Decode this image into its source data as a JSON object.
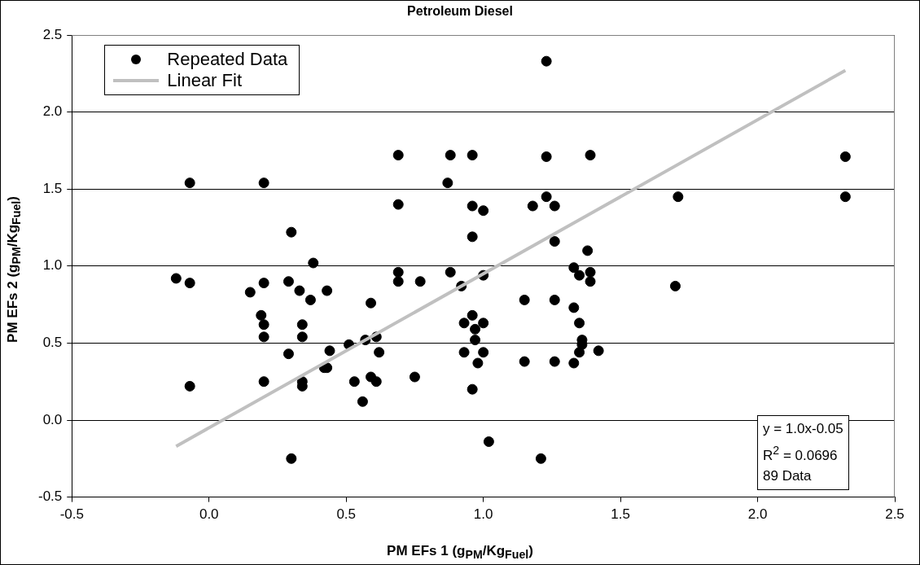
{
  "chart_data": {
    "type": "scatter",
    "title": "Petroleum Diesel",
    "xlabel": "PM EFs 1 (g$_{PM}$/Kg$_{Fuel}$)",
    "ylabel": "PM EFs 2 (g$_{PM}$/Kg$_{Fuel}$)",
    "annotations": [
      "y = 1.0x-0.05",
      "R$^{2}$ = 0.0696",
      "89 Data"
    ],
    "series": [
      {
        "name": "Repeated Data",
        "color": "#000000",
        "type": "scatter",
        "marker": "circle",
        "x": [
          -0.07,
          0.2,
          0.3,
          0.38,
          -0.12,
          -0.07,
          0.2,
          0.29,
          0.15,
          0.33,
          0.43,
          0.37,
          0.19,
          0.2,
          0.34,
          0.2,
          0.34,
          0.44,
          0.29,
          0.42,
          0.43,
          -0.07,
          0.2,
          0.34,
          0.34,
          0.3,
          1.23,
          0.69,
          0.88,
          0.96,
          1.23,
          1.39,
          0.87,
          0.69,
          1.23,
          1.18,
          1.26,
          0.96,
          1.0,
          0.96,
          1.26,
          1.38,
          0.69,
          0.88,
          1.33,
          1.35,
          1.39,
          1.0,
          0.69,
          0.77,
          1.39,
          0.92,
          0.59,
          1.15,
          1.26,
          1.33,
          0.96,
          0.93,
          1.0,
          1.35,
          0.97,
          0.51,
          0.57,
          0.61,
          0.97,
          1.36,
          1.36,
          0.62,
          0.93,
          1.0,
          1.35,
          1.42,
          0.98,
          1.15,
          1.26,
          1.33,
          0.53,
          0.59,
          0.61,
          0.75,
          0.56,
          0.96,
          1.02,
          1.21,
          2.32,
          2.32,
          1.71,
          1.7
        ],
        "values": [
          1.54,
          1.54,
          1.22,
          1.02,
          0.92,
          0.89,
          0.89,
          0.9,
          0.83,
          0.84,
          0.84,
          0.78,
          0.68,
          0.62,
          0.62,
          0.54,
          0.54,
          0.45,
          0.43,
          0.34,
          0.34,
          0.22,
          0.25,
          0.25,
          0.22,
          -0.25,
          2.33,
          1.72,
          1.72,
          1.72,
          1.71,
          1.72,
          1.54,
          1.4,
          1.45,
          1.39,
          1.39,
          1.39,
          1.36,
          1.19,
          1.16,
          1.1,
          0.96,
          0.96,
          0.99,
          0.94,
          0.96,
          0.94,
          0.9,
          0.9,
          0.9,
          0.87,
          0.76,
          0.78,
          0.78,
          0.73,
          0.68,
          0.63,
          0.63,
          0.63,
          0.59,
          0.49,
          0.52,
          0.54,
          0.52,
          0.52,
          0.49,
          0.44,
          0.44,
          0.44,
          0.44,
          0.45,
          0.37,
          0.38,
          0.38,
          0.37,
          0.25,
          0.28,
          0.25,
          0.28,
          0.12,
          0.2,
          -0.14,
          -0.25,
          1.71,
          1.45,
          1.45,
          0.87
        ]
      },
      {
        "name": "Linear Fit",
        "color": "#c0c0c0",
        "type": "line",
        "marker": "none",
        "line_style": "solid",
        "x": [
          -0.12,
          2.32
        ],
        "values": [
          -0.17,
          2.27
        ]
      }
    ],
    "xlim": [
      -0.5,
      2.5
    ],
    "xticks": [
      {
        "value": -0.5,
        "label": "-0.5"
      },
      {
        "value": 0,
        "label": "0.0"
      },
      {
        "value": 0.5,
        "label": "0.5"
      },
      {
        "value": 1,
        "label": "1.0"
      },
      {
        "value": 1.5,
        "label": "1.5"
      },
      {
        "value": 2,
        "label": "2.0"
      },
      {
        "value": 2.5,
        "label": "2.5"
      }
    ],
    "ylim": [
      -0.5,
      2.5
    ],
    "yticks": [
      {
        "value": -0.5,
        "label": "-0.5"
      },
      {
        "value": 0,
        "label": "0.0"
      },
      {
        "value": 0.5,
        "label": "0.5"
      },
      {
        "value": 1,
        "label": "1.0"
      },
      {
        "value": 1.5,
        "label": "1.5"
      },
      {
        "value": 2,
        "label": "2.0"
      },
      {
        "value": 2.5,
        "label": "2.5"
      }
    ],
    "grid": "y",
    "legend": "top left"
  }
}
